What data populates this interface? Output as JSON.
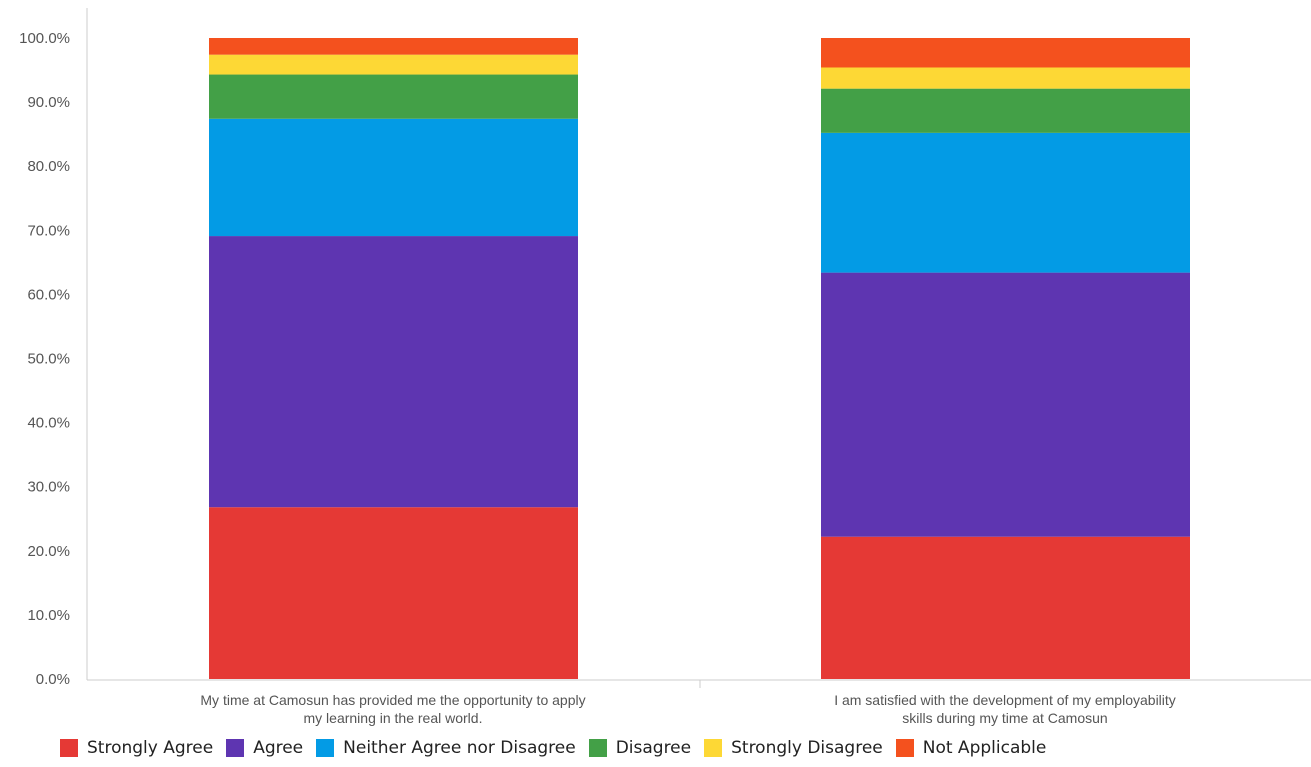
{
  "chart_data": {
    "type": "bar",
    "stacked": true,
    "categories": [
      "My time at Camosun has provided me the opportunity to apply my learning in the real world.",
      "I am satisfied with the development of my employability skills during my time at Camosun"
    ],
    "category_lines": [
      [
        "My time at Camosun has provided me the opportunity to apply",
        "my learning in the real world."
      ],
      [
        "I am satisfied with the development of my employability",
        "skills during my time at Camosun"
      ]
    ],
    "series": [
      {
        "name": "Strongly Agree",
        "color": "#E53935",
        "values": [
          26.8,
          22.2
        ]
      },
      {
        "name": "Agree",
        "color": "#5E35B1",
        "values": [
          42.3,
          41.2
        ]
      },
      {
        "name": "Neither Agree nor Disagree",
        "color": "#039BE5",
        "values": [
          18.3,
          21.8
        ]
      },
      {
        "name": "Disagree",
        "color": "#43A047",
        "values": [
          6.9,
          6.9
        ]
      },
      {
        "name": "Strongly Disagree",
        "color": "#FDD835",
        "values": [
          3.1,
          3.3
        ]
      },
      {
        "name": "Not Applicable",
        "color": "#F4511E",
        "values": [
          2.6,
          4.6
        ]
      }
    ],
    "ylim": [
      0,
      100
    ],
    "yticks": [
      "0.0%",
      "10.0%",
      "20.0%",
      "30.0%",
      "40.0%",
      "50.0%",
      "60.0%",
      "70.0%",
      "80.0%",
      "90.0%",
      "100.0%"
    ],
    "grid": false,
    "legend_position": "bottom-left"
  }
}
